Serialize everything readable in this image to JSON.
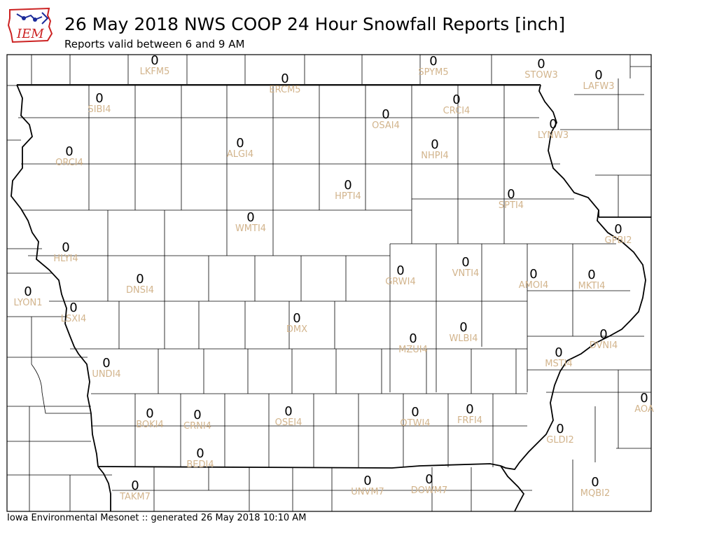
{
  "header": {
    "logo_text": "IEM",
    "title": "26 May 2018 NWS COOP 24 Hour Snowfall Reports [inch]",
    "subtitle": "Reports valid between 6 and 9 AM"
  },
  "footer": {
    "text": "Iowa Environmental Mesonet :: generated 26 May 2018 10:10 AM"
  },
  "colors": {
    "label": "#d2b48c",
    "value": "#000000",
    "border": "#000000",
    "background": "#ffffff"
  },
  "stations": [
    {
      "id": "LKFM5",
      "value": "0"
    },
    {
      "id": "ERCM5",
      "value": "0"
    },
    {
      "id": "SPYM5",
      "value": "0"
    },
    {
      "id": "STOW3",
      "value": "0"
    },
    {
      "id": "LAFW3",
      "value": "0"
    },
    {
      "id": "SIBI4",
      "value": "0"
    },
    {
      "id": "CRCI4",
      "value": "0"
    },
    {
      "id": "OSAI4",
      "value": "0"
    },
    {
      "id": "LYNW3",
      "value": "0"
    },
    {
      "id": "ORCI4",
      "value": "0"
    },
    {
      "id": "ALGI4",
      "value": "0"
    },
    {
      "id": "NHPI4",
      "value": "0"
    },
    {
      "id": "HPTI4",
      "value": "0"
    },
    {
      "id": "SPTI4",
      "value": "0"
    },
    {
      "id": "WMTI4",
      "value": "0"
    },
    {
      "id": "GPBI2",
      "value": "0"
    },
    {
      "id": "HLYI4",
      "value": "0"
    },
    {
      "id": "VNTI4",
      "value": "0"
    },
    {
      "id": "GRWI4",
      "value": "0"
    },
    {
      "id": "AMOI4",
      "value": "0"
    },
    {
      "id": "MKTI4",
      "value": "0"
    },
    {
      "id": "DNSI4",
      "value": "0"
    },
    {
      "id": "LYON1",
      "value": "0"
    },
    {
      "id": "LSXI4",
      "value": "0"
    },
    {
      "id": "DMX",
      "value": "0"
    },
    {
      "id": "WLBI4",
      "value": "0"
    },
    {
      "id": "DVNI4",
      "value": "0"
    },
    {
      "id": "MZUI4",
      "value": "0"
    },
    {
      "id": "MSTI4",
      "value": "0"
    },
    {
      "id": "UNDI4",
      "value": "0"
    },
    {
      "id": "AOA",
      "value": "0"
    },
    {
      "id": "BOKI4",
      "value": "0"
    },
    {
      "id": "CRNI4",
      "value": "0"
    },
    {
      "id": "OSEI4",
      "value": "0"
    },
    {
      "id": "OTWI4",
      "value": "0"
    },
    {
      "id": "FRFI4",
      "value": "0"
    },
    {
      "id": "GLDI2",
      "value": "0"
    },
    {
      "id": "BEDI4",
      "value": "0"
    },
    {
      "id": "TAKM7",
      "value": "0"
    },
    {
      "id": "UNVM7",
      "value": "0"
    },
    {
      "id": "DOWM7",
      "value": "0"
    },
    {
      "id": "MQBI2",
      "value": "0"
    }
  ]
}
